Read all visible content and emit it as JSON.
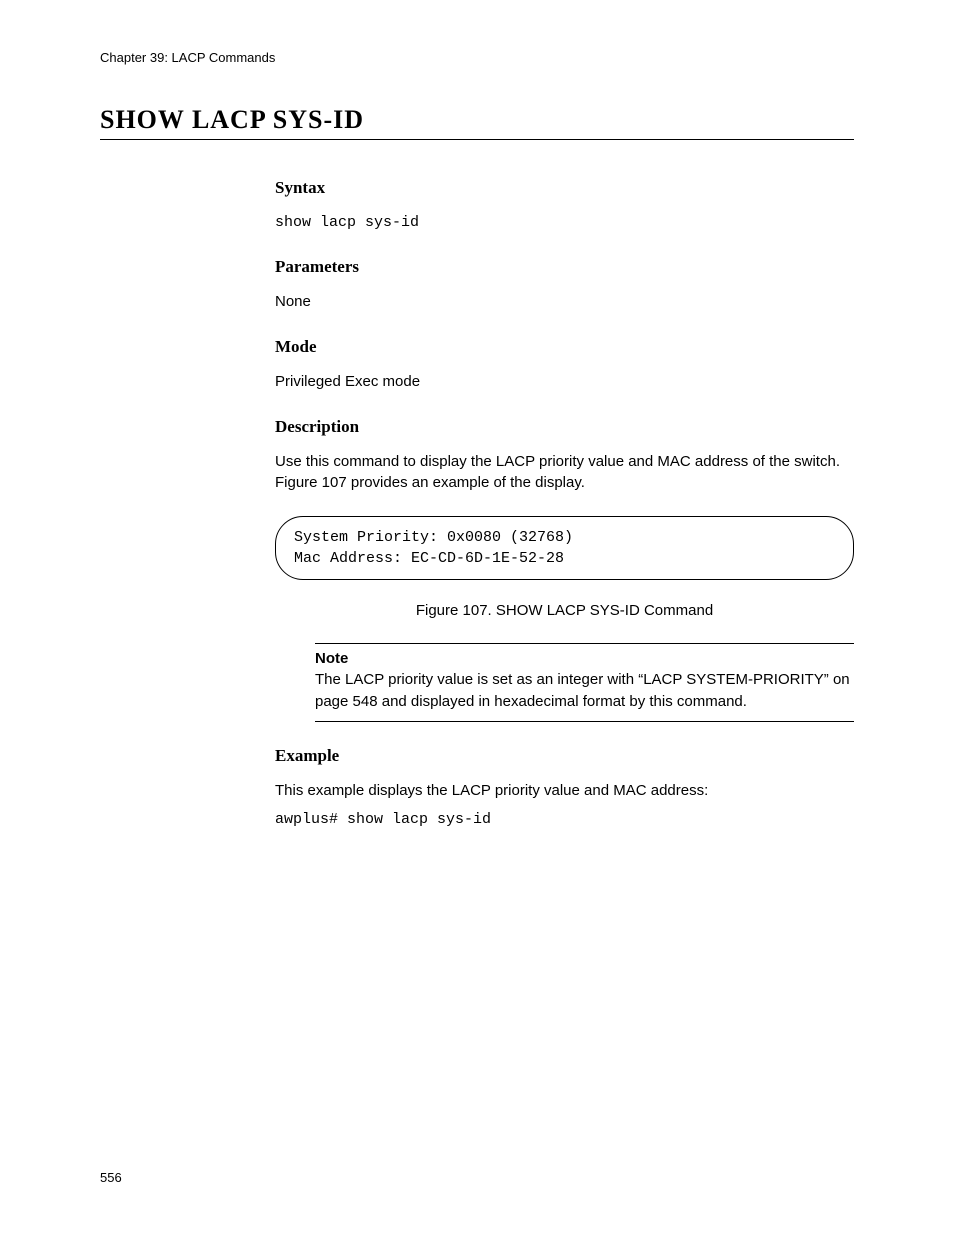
{
  "header": {
    "chapter": "Chapter 39: LACP Commands"
  },
  "title": "SHOW LACP SYS-ID",
  "sections": {
    "syntax": {
      "heading": "Syntax",
      "command": "show lacp sys-id"
    },
    "parameters": {
      "heading": "Parameters",
      "text": "None"
    },
    "mode": {
      "heading": "Mode",
      "text": "Privileged Exec mode"
    },
    "description": {
      "heading": "Description",
      "text": "Use this command to display the LACP priority value and MAC address of the switch. Figure 107 provides an example of the display.",
      "output": {
        "line1": "System Priority: 0x0080 (32768)",
        "line2": "Mac Address: EC-CD-6D-1E-52-28"
      },
      "figure_caption": "Figure 107. SHOW LACP SYS-ID Command",
      "note": {
        "title": "Note",
        "body": "The LACP priority value is set as an integer with “LACP SYSTEM-PRIORITY” on page 548 and displayed in hexadecimal format by this command."
      }
    },
    "example": {
      "heading": "Example",
      "text": "This example displays the LACP priority value and MAC address:",
      "command": "awplus# show lacp sys-id"
    }
  },
  "page_number": "556"
}
